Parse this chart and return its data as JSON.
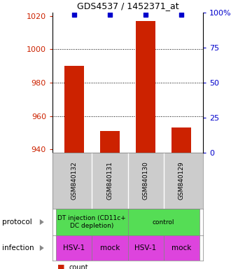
{
  "title": "GDS4537 / 1452371_at",
  "samples": [
    "GSM840132",
    "GSM840131",
    "GSM840130",
    "GSM840129"
  ],
  "counts": [
    990,
    951,
    1017,
    953
  ],
  "percentile_values": [
    1019,
    1019,
    1019,
    1019
  ],
  "ylim_left": [
    938,
    1022
  ],
  "ylim_right": [
    0,
    100
  ],
  "yticks_left": [
    940,
    960,
    980,
    1000,
    1020
  ],
  "yticks_right": [
    0,
    25,
    50,
    75,
    100
  ],
  "ytick_right_labels": [
    "0",
    "25",
    "50",
    "75",
    "100%"
  ],
  "bar_color": "#cc2200",
  "marker_color": "#0000cc",
  "bar_width": 0.55,
  "protocol_labels": [
    "DT injection (CD11c+\nDC depletion)",
    "control"
  ],
  "protocol_colors": [
    "#55dd55",
    "#55dd55"
  ],
  "infection_labels": [
    "HSV-1",
    "mock",
    "HSV-1",
    "mock"
  ],
  "infection_color": "#dd44dd",
  "left_label_color": "#cc2200",
  "right_label_color": "#0000cc",
  "background_color": "#ffffff",
  "sample_box_color": "#cccccc",
  "grid_yticks": [
    1000,
    980,
    960
  ]
}
